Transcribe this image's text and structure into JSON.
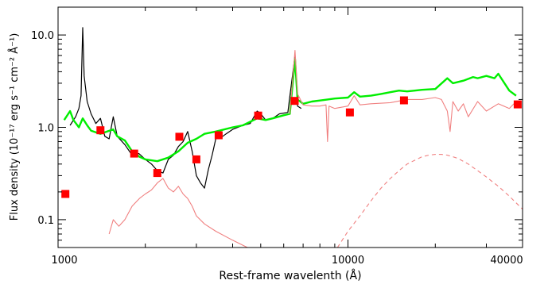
{
  "chart_data": {
    "type": "line",
    "xlabel": "Rest-frame wavelenth (Å)",
    "ylabel": "Flux density (10⁻¹⁷ erg s⁻¹ cm⁻² Å⁻¹)",
    "x_scale": "log",
    "y_scale": "log",
    "xlim": [
      1000,
      40000
    ],
    "ylim": [
      0.05,
      20
    ],
    "x_ticks": [
      {
        "value": 1000,
        "label": "1000"
      },
      {
        "value": 10000,
        "label": "10000"
      },
      {
        "value": 40000,
        "label": "40000"
      }
    ],
    "y_ticks": [
      {
        "value": 0.1,
        "label": "0.1"
      },
      {
        "value": 1.0,
        "label": "1.0"
      },
      {
        "value": 10.0,
        "label": "10.0"
      }
    ],
    "colors": {
      "observed_spectrum": "#000000",
      "model_total": "#00ee00",
      "model_components": "#f08080",
      "photometry": "#ff0000"
    },
    "series": [
      {
        "key": "observed",
        "color": "#000000",
        "points": [
          [
            1100,
            1.05
          ],
          [
            1150,
            1.3
          ],
          [
            1180,
            1.6
          ],
          [
            1200,
            2.2
          ],
          [
            1216,
            12
          ],
          [
            1230,
            3.6
          ],
          [
            1260,
            1.9
          ],
          [
            1300,
            1.4
          ],
          [
            1350,
            1.1
          ],
          [
            1400,
            1.25
          ],
          [
            1450,
            0.8
          ],
          [
            1500,
            0.75
          ],
          [
            1550,
            1.3
          ],
          [
            1600,
            0.8
          ],
          [
            1700,
            0.65
          ],
          [
            1800,
            0.5
          ],
          [
            1900,
            0.52
          ],
          [
            2000,
            0.45
          ],
          [
            2100,
            0.4
          ],
          [
            2200,
            0.34
          ],
          [
            2300,
            0.32
          ],
          [
            2400,
            0.45
          ],
          [
            2500,
            0.5
          ],
          [
            2600,
            0.62
          ],
          [
            2700,
            0.7
          ],
          [
            2800,
            0.9
          ],
          [
            2900,
            0.55
          ],
          [
            3000,
            0.3
          ],
          [
            3100,
            0.25
          ],
          [
            3200,
            0.22
          ],
          [
            3300,
            0.35
          ],
          [
            3400,
            0.5
          ],
          [
            3500,
            0.75
          ],
          [
            3700,
            0.8
          ],
          [
            3800,
            0.85
          ],
          [
            4000,
            0.95
          ],
          [
            4340,
            1.05
          ],
          [
            4600,
            1.1
          ],
          [
            4861,
            1.5
          ],
          [
            5000,
            1.4
          ],
          [
            5200,
            1.2
          ],
          [
            5500,
            1.25
          ],
          [
            5800,
            1.4
          ],
          [
            6200,
            1.45
          ],
          [
            6563,
            6.0
          ],
          [
            6700,
            1.7
          ],
          [
            6900,
            1.6
          ]
        ]
      },
      {
        "key": "model",
        "color": "#00ee00",
        "points": [
          [
            1050,
            1.2
          ],
          [
            1100,
            1.5
          ],
          [
            1130,
            1.2
          ],
          [
            1180,
            1.0
          ],
          [
            1216,
            1.25
          ],
          [
            1260,
            1.05
          ],
          [
            1300,
            0.92
          ],
          [
            1400,
            0.85
          ],
          [
            1549,
            0.95
          ],
          [
            1600,
            0.8
          ],
          [
            1700,
            0.72
          ],
          [
            1800,
            0.55
          ],
          [
            1909,
            0.48
          ],
          [
            2000,
            0.45
          ],
          [
            2200,
            0.43
          ],
          [
            2400,
            0.47
          ],
          [
            2600,
            0.55
          ],
          [
            2798,
            0.68
          ],
          [
            3000,
            0.75
          ],
          [
            3200,
            0.85
          ],
          [
            3500,
            0.9
          ],
          [
            4000,
            1.0
          ],
          [
            4340,
            1.05
          ],
          [
            4861,
            1.25
          ],
          [
            5200,
            1.2
          ],
          [
            5500,
            1.25
          ],
          [
            6000,
            1.35
          ],
          [
            6300,
            1.4
          ],
          [
            6563,
            5.5
          ],
          [
            6700,
            2.0
          ],
          [
            7000,
            1.8
          ],
          [
            7500,
            1.9
          ],
          [
            8000,
            1.95
          ],
          [
            8500,
            2.0
          ],
          [
            9000,
            2.05
          ],
          [
            10000,
            2.1
          ],
          [
            10500,
            2.4
          ],
          [
            11000,
            2.15
          ],
          [
            12000,
            2.2
          ],
          [
            13000,
            2.3
          ],
          [
            14000,
            2.4
          ],
          [
            15000,
            2.5
          ],
          [
            16000,
            2.45
          ],
          [
            17000,
            2.5
          ],
          [
            18000,
            2.55
          ],
          [
            20000,
            2.6
          ],
          [
            22000,
            3.4
          ],
          [
            23000,
            3.0
          ],
          [
            25000,
            3.2
          ],
          [
            27000,
            3.5
          ],
          [
            28000,
            3.4
          ],
          [
            30000,
            3.6
          ],
          [
            32000,
            3.4
          ],
          [
            33000,
            3.8
          ],
          [
            36000,
            2.5
          ],
          [
            38000,
            2.2
          ]
        ]
      },
      {
        "key": "host_plus_agn",
        "color": "#f08080",
        "points": [
          [
            6300,
            1.4
          ],
          [
            6563,
            6.8
          ],
          [
            6700,
            2.3
          ],
          [
            7000,
            1.75
          ],
          [
            7500,
            1.7
          ],
          [
            8000,
            1.7
          ],
          [
            8400,
            1.75
          ],
          [
            8500,
            0.7
          ],
          [
            8600,
            1.7
          ],
          [
            9000,
            1.6
          ],
          [
            10000,
            1.7
          ],
          [
            10500,
            2.2
          ],
          [
            11000,
            1.75
          ],
          [
            12000,
            1.8
          ],
          [
            14000,
            1.85
          ],
          [
            16000,
            2.0
          ],
          [
            18000,
            2.0
          ],
          [
            20000,
            2.1
          ],
          [
            21000,
            2.0
          ],
          [
            22000,
            1.5
          ],
          [
            22500,
            0.9
          ],
          [
            23000,
            1.9
          ],
          [
            24000,
            1.5
          ],
          [
            25000,
            1.8
          ],
          [
            26000,
            1.3
          ],
          [
            28000,
            1.9
          ],
          [
            30000,
            1.5
          ],
          [
            33000,
            1.8
          ],
          [
            36000,
            1.6
          ],
          [
            38000,
            1.9
          ]
        ]
      },
      {
        "key": "agn_continuum",
        "color": "#f08080",
        "points": [
          [
            1500,
            0.07
          ],
          [
            1550,
            0.1
          ],
          [
            1620,
            0.085
          ],
          [
            1700,
            0.1
          ],
          [
            1800,
            0.14
          ],
          [
            1909,
            0.17
          ],
          [
            2000,
            0.19
          ],
          [
            2100,
            0.21
          ],
          [
            2200,
            0.25
          ],
          [
            2300,
            0.28
          ],
          [
            2400,
            0.22
          ],
          [
            2500,
            0.2
          ],
          [
            2600,
            0.23
          ],
          [
            2700,
            0.19
          ],
          [
            2798,
            0.17
          ],
          [
            2900,
            0.14
          ],
          [
            3000,
            0.11
          ],
          [
            3200,
            0.09
          ],
          [
            3500,
            0.075
          ],
          [
            4000,
            0.06
          ],
          [
            4500,
            0.05
          ]
        ]
      },
      {
        "key": "host_galaxy",
        "color": "#f08080",
        "dashed": true,
        "points": [
          [
            9200,
            0.05
          ],
          [
            10000,
            0.075
          ],
          [
            11000,
            0.11
          ],
          [
            12000,
            0.16
          ],
          [
            13000,
            0.22
          ],
          [
            14000,
            0.28
          ],
          [
            15000,
            0.34
          ],
          [
            16000,
            0.4
          ],
          [
            17000,
            0.44
          ],
          [
            18000,
            0.48
          ],
          [
            19000,
            0.5
          ],
          [
            20000,
            0.51
          ],
          [
            21000,
            0.51
          ],
          [
            22000,
            0.5
          ],
          [
            23000,
            0.48
          ],
          [
            24000,
            0.46
          ],
          [
            26000,
            0.4
          ],
          [
            28000,
            0.34
          ],
          [
            30000,
            0.29
          ],
          [
            33000,
            0.23
          ],
          [
            36000,
            0.18
          ],
          [
            40000,
            0.13
          ]
        ]
      }
    ],
    "photometry": [
      {
        "x": 1060,
        "y": 0.19
      },
      {
        "x": 1400,
        "y": 0.93
      },
      {
        "x": 1830,
        "y": 0.52
      },
      {
        "x": 2200,
        "y": 0.32
      },
      {
        "x": 2620,
        "y": 0.79
      },
      {
        "x": 3000,
        "y": 0.45
      },
      {
        "x": 3580,
        "y": 0.82
      },
      {
        "x": 4900,
        "y": 1.34
      },
      {
        "x": 6550,
        "y": 1.93
      },
      {
        "x": 10150,
        "y": 1.45
      },
      {
        "x": 15600,
        "y": 1.96
      },
      {
        "x": 38500,
        "y": 1.77
      }
    ]
  }
}
